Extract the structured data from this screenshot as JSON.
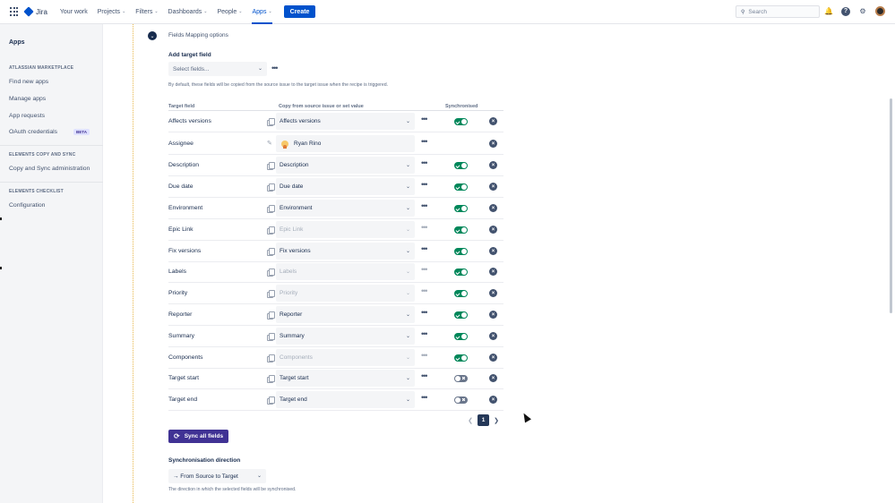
{
  "nav": {
    "logo": "Jira",
    "items": [
      {
        "label": "Your work",
        "chevron": false,
        "active": false
      },
      {
        "label": "Projects",
        "chevron": true,
        "active": false
      },
      {
        "label": "Filters",
        "chevron": true,
        "active": false
      },
      {
        "label": "Dashboards",
        "chevron": true,
        "active": false
      },
      {
        "label": "People",
        "chevron": true,
        "active": false
      },
      {
        "label": "Apps",
        "chevron": true,
        "active": true
      }
    ],
    "create_label": "Create",
    "search_placeholder": "Search"
  },
  "sidebar": {
    "title": "Apps",
    "sections": [
      {
        "heading": "ATLASSIAN MARKETPLACE",
        "items": [
          {
            "label": "Find new apps"
          },
          {
            "label": "Manage apps"
          },
          {
            "label": "App requests"
          },
          {
            "label": "OAuth credentials",
            "badge": "BETA"
          }
        ]
      },
      {
        "heading": "ELEMENTS COPY AND SYNC",
        "items": [
          {
            "label": "Copy and Sync administration"
          }
        ]
      },
      {
        "heading": "ELEMENTS CHECKLIST",
        "items": [
          {
            "label": "Configuration"
          }
        ]
      }
    ]
  },
  "main": {
    "section_label": "Fields Mapping options",
    "add_target_label": "Add target field",
    "select_placeholder": "Select fields...",
    "help_text": "By default, these fields will be copied from the source issue to the target issue when the recipe is triggered.",
    "columns": {
      "target": "Target field",
      "copy": "Copy from source issue or set value",
      "sync": "Synchronised"
    },
    "rows": [
      {
        "name": "Affects versions",
        "value": "Affects versions",
        "kind": "select",
        "disabled": false,
        "sync": "on"
      },
      {
        "name": "Assignee",
        "value": "Ryan Rino",
        "kind": "user",
        "disabled": false,
        "sync": "none"
      },
      {
        "name": "Description",
        "value": "Description",
        "kind": "select",
        "disabled": false,
        "sync": "on"
      },
      {
        "name": "Due date",
        "value": "Due date",
        "kind": "select",
        "disabled": false,
        "sync": "on"
      },
      {
        "name": "Environment",
        "value": "Environment",
        "kind": "select",
        "disabled": false,
        "sync": "on"
      },
      {
        "name": "Epic Link",
        "value": "Epic Link",
        "kind": "select",
        "disabled": true,
        "sync": "on"
      },
      {
        "name": "Fix versions",
        "value": "Fix versions",
        "kind": "select",
        "disabled": false,
        "sync": "on"
      },
      {
        "name": "Labels",
        "value": "Labels",
        "kind": "select",
        "disabled": true,
        "sync": "on"
      },
      {
        "name": "Priority",
        "value": "Priority",
        "kind": "select",
        "disabled": true,
        "sync": "on"
      },
      {
        "name": "Reporter",
        "value": "Reporter",
        "kind": "select",
        "disabled": false,
        "sync": "on"
      },
      {
        "name": "Summary",
        "value": "Summary",
        "kind": "select",
        "disabled": false,
        "sync": "on"
      },
      {
        "name": "Components",
        "value": "Components",
        "kind": "select",
        "disabled": true,
        "sync": "on"
      },
      {
        "name": "Target start",
        "value": "Target start",
        "kind": "select",
        "disabled": false,
        "sync": "off"
      },
      {
        "name": "Target end",
        "value": "Target end",
        "kind": "select",
        "disabled": false,
        "sync": "off"
      }
    ],
    "pagination": {
      "current": "1"
    },
    "sync_all_label": "Sync all fields",
    "direction_label": "Synchronisation direction",
    "direction_value": "→ From Source to Target",
    "direction_help": "The direction in which the selected fields will be synchronised."
  },
  "colors": {
    "primary": "#0052cc",
    "sync_button": "#403294",
    "toggle_on": "#00875a",
    "toggle_off": "#6b778c",
    "timeline": "#e8b84d"
  }
}
